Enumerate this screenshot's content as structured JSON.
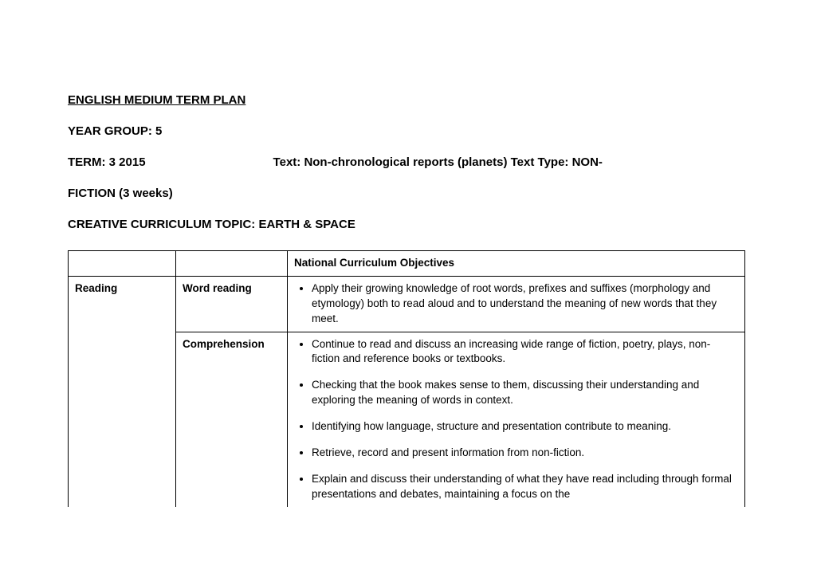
{
  "header": {
    "title": "ENGLISH MEDIUM TERM PLAN",
    "year_group_label": "YEAR GROUP: 5",
    "term_label": "TERM: 3 2015",
    "text_label": "Text: Non-chronological reports (planets)    Text Type: NON-",
    "fiction_line": "FICTION (3 weeks)",
    "curriculum_topic": "CREATIVE CURRICULUM TOPIC: EARTH & SPACE"
  },
  "table": {
    "header": "National Curriculum Objectives",
    "category": "Reading",
    "rows": [
      {
        "sub": "Word reading",
        "items": [
          "Apply their growing knowledge of root words, prefixes and suffixes (morphology and etymology) both to read aloud and to understand the meaning of new words that they meet."
        ]
      },
      {
        "sub": "Comprehension",
        "items": [
          "Continue to read and discuss an increasing wide range of fiction, poetry, plays, non-fiction and reference books or textbooks.",
          "Checking that the book makes sense to them, discussing their understanding and exploring the meaning of words in context.",
          "Identifying how language, structure and presentation contribute to meaning.",
          "Retrieve, record and present information from non-fiction.",
          "Explain and discuss their understanding of what they have read including through formal presentations and debates, maintaining a focus on the"
        ]
      }
    ]
  }
}
